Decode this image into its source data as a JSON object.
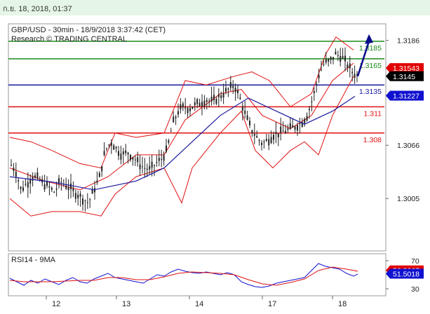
{
  "timestamp": "ก.ย. 18, 2018, 01:37",
  "chart_data": [
    {
      "type": "candlestick",
      "title": "GBP/USD - 30min - 18/9/2018 3:37:42 (CET)",
      "subtitle": "Research © TRADING CENTRAL",
      "x_ticks": [
        "12",
        "13",
        "14",
        "17",
        "18"
      ],
      "y_ticks": [
        "1.3186",
        "1.3066",
        "1.3005"
      ],
      "ylim": [
        1.2945,
        1.3205
      ],
      "levels": [
        {
          "value": 1.3185,
          "label": "1.3185",
          "color": "#1a8a1a"
        },
        {
          "value": 1.3165,
          "label": "1.3165",
          "color": "#1a8a1a"
        },
        {
          "value": 1.3135,
          "label": "1.3135",
          "color": "#1a1aa0"
        },
        {
          "value": 1.311,
          "label": "1.311",
          "color": "#e01010"
        },
        {
          "value": 1.308,
          "label": "1.308",
          "color": "#e01010"
        }
      ],
      "tags": [
        {
          "value": 1.31543,
          "label": "1.31543",
          "color": "#e00000"
        },
        {
          "value": 1.3145,
          "label": "1.3145",
          "color": "#000000"
        },
        {
          "value": 1.31227,
          "label": "1.31227",
          "color": "#1010d0"
        }
      ],
      "price_path": [
        [
          0,
          1.3045
        ],
        [
          8,
          1.3038
        ],
        [
          16,
          1.3015
        ],
        [
          24,
          1.3022
        ],
        [
          32,
          1.303
        ],
        [
          40,
          1.3028
        ],
        [
          48,
          1.3022
        ],
        [
          56,
          1.3018
        ],
        [
          64,
          1.3012
        ],
        [
          72,
          1.3025
        ],
        [
          80,
          1.302
        ],
        [
          88,
          1.3015
        ],
        [
          96,
          1.301
        ],
        [
          104,
          1.3005
        ],
        [
          112,
          1.3
        ],
        [
          120,
          1.3015
        ],
        [
          128,
          1.303
        ],
        [
          136,
          1.306
        ],
        [
          144,
          1.307
        ],
        [
          152,
          1.3062
        ],
        [
          160,
          1.3055
        ],
        [
          168,
          1.3058
        ],
        [
          176,
          1.3052
        ],
        [
          184,
          1.3045
        ],
        [
          192,
          1.304
        ],
        [
          200,
          1.3038
        ],
        [
          208,
          1.3045
        ],
        [
          216,
          1.305
        ],
        [
          224,
          1.306
        ],
        [
          232,
          1.309
        ],
        [
          240,
          1.3105
        ],
        [
          248,
          1.311
        ],
        [
          256,
          1.3108
        ],
        [
          264,
          1.3112
        ],
        [
          272,
          1.3115
        ],
        [
          280,
          1.3118
        ],
        [
          288,
          1.3116
        ],
        [
          296,
          1.312
        ],
        [
          304,
          1.3125
        ],
        [
          312,
          1.313
        ],
        [
          320,
          1.3135
        ],
        [
          328,
          1.312
        ],
        [
          336,
          1.31
        ],
        [
          344,
          1.3085
        ],
        [
          352,
          1.3075
        ],
        [
          360,
          1.3068
        ],
        [
          368,
          1.3072
        ],
        [
          376,
          1.3078
        ],
        [
          384,
          1.308
        ],
        [
          392,
          1.3082
        ],
        [
          400,
          1.3085
        ],
        [
          408,
          1.3088
        ],
        [
          416,
          1.3092
        ],
        [
          424,
          1.31
        ],
        [
          432,
          1.312
        ],
        [
          440,
          1.3145
        ],
        [
          448,
          1.316
        ],
        [
          456,
          1.3162
        ],
        [
          464,
          1.317
        ],
        [
          472,
          1.3168
        ],
        [
          480,
          1.316
        ],
        [
          488,
          1.315
        ],
        [
          496,
          1.3145
        ]
      ],
      "ma_path": [
        [
          0,
          1.303
        ],
        [
          60,
          1.3024
        ],
        [
          120,
          1.3015
        ],
        [
          180,
          1.3025
        ],
        [
          220,
          1.304
        ],
        [
          260,
          1.307
        ],
        [
          300,
          1.31
        ],
        [
          340,
          1.312
        ],
        [
          380,
          1.3105
        ],
        [
          420,
          1.309
        ],
        [
          460,
          1.3105
        ],
        [
          492,
          1.3122
        ]
      ],
      "bollinger_upper": [
        [
          0,
          1.3075
        ],
        [
          30,
          1.307
        ],
        [
          60,
          1.306
        ],
        [
          100,
          1.3045
        ],
        [
          130,
          1.304
        ],
        [
          150,
          1.308
        ],
        [
          180,
          1.3075
        ],
        [
          220,
          1.308
        ],
        [
          250,
          1.314
        ],
        [
          280,
          1.3135
        ],
        [
          320,
          1.3145
        ],
        [
          345,
          1.315
        ],
        [
          370,
          1.314
        ],
        [
          400,
          1.311
        ],
        [
          430,
          1.3125
        ],
        [
          450,
          1.317
        ],
        [
          465,
          1.319
        ],
        [
          490,
          1.3175
        ]
      ],
      "bollinger_middle": [
        [
          0,
          1.304
        ],
        [
          50,
          1.3025
        ],
        [
          100,
          1.3015
        ],
        [
          140,
          1.303
        ],
        [
          180,
          1.3055
        ],
        [
          220,
          1.3055
        ],
        [
          250,
          1.3095
        ],
        [
          300,
          1.3125
        ],
        [
          330,
          1.313
        ],
        [
          360,
          1.31
        ],
        [
          400,
          1.3085
        ],
        [
          430,
          1.31
        ],
        [
          460,
          1.314
        ],
        [
          490,
          1.316
        ]
      ],
      "bollinger_lower": [
        [
          0,
          1.3005
        ],
        [
          30,
          1.2985
        ],
        [
          60,
          1.299
        ],
        [
          100,
          1.299
        ],
        [
          130,
          1.2985
        ],
        [
          150,
          1.301
        ],
        [
          180,
          1.303
        ],
        [
          220,
          1.304
        ],
        [
          245,
          1.3
        ],
        [
          260,
          1.304
        ],
        [
          300,
          1.308
        ],
        [
          330,
          1.3105
        ],
        [
          350,
          1.306
        ],
        [
          375,
          1.304
        ],
        [
          400,
          1.306
        ],
        [
          420,
          1.307
        ],
        [
          440,
          1.3055
        ],
        [
          460,
          1.31
        ],
        [
          490,
          1.3145
        ]
      ],
      "projection_arrow": [
        [
          496,
          1.3145
        ],
        [
          512,
          1.319
        ]
      ]
    },
    {
      "type": "line",
      "title": "RSI14 - 9MA",
      "y_ticks": [
        "70",
        "30"
      ],
      "ylim": [
        20,
        80
      ],
      "tags": [
        {
          "value": 56.2667,
          "label": "56.2667",
          "color": "#e00000"
        },
        {
          "value": 51.5018,
          "label": "51.5018",
          "color": "#1010d0"
        }
      ],
      "series": [
        {
          "color": "#1010d0",
          "values": [
            [
              0,
              45
            ],
            [
              10,
              40
            ],
            [
              20,
              35
            ],
            [
              30,
              42
            ],
            [
              40,
              38
            ],
            [
              50,
              44
            ],
            [
              60,
              40
            ],
            [
              70,
              36
            ],
            [
              80,
              42
            ],
            [
              90,
              46
            ],
            [
              100,
              40
            ],
            [
              110,
              38
            ],
            [
              120,
              44
            ],
            [
              130,
              48
            ],
            [
              140,
              52
            ],
            [
              150,
              46
            ],
            [
              160,
              44
            ],
            [
              170,
              42
            ],
            [
              180,
              40
            ],
            [
              190,
              38
            ],
            [
              200,
              44
            ],
            [
              210,
              50
            ],
            [
              220,
              48
            ],
            [
              230,
              54
            ],
            [
              240,
              58
            ],
            [
              250,
              55
            ],
            [
              260,
              53
            ],
            [
              270,
              52
            ],
            [
              280,
              54
            ],
            [
              290,
              52
            ],
            [
              300,
              50
            ],
            [
              310,
              53
            ],
            [
              320,
              50
            ],
            [
              330,
              40
            ],
            [
              340,
              36
            ],
            [
              350,
              33
            ],
            [
              360,
              32
            ],
            [
              370,
              34
            ],
            [
              380,
              38
            ],
            [
              390,
              40
            ],
            [
              400,
              42
            ],
            [
              410,
              44
            ],
            [
              420,
              46
            ],
            [
              430,
              56
            ],
            [
              440,
              66
            ],
            [
              450,
              62
            ],
            [
              460,
              60
            ],
            [
              470,
              58
            ],
            [
              480,
              52
            ],
            [
              490,
              48
            ],
            [
              496,
              51
            ]
          ]
        },
        {
          "color": "#e01010",
          "values": [
            [
              0,
              42
            ],
            [
              20,
              40
            ],
            [
              40,
              40
            ],
            [
              60,
              40
            ],
            [
              80,
              41
            ],
            [
              100,
              42
            ],
            [
              120,
              42
            ],
            [
              140,
              46
            ],
            [
              160,
              46
            ],
            [
              180,
              43
            ],
            [
              200,
              43
            ],
            [
              220,
              47
            ],
            [
              240,
              52
            ],
            [
              260,
              54
            ],
            [
              280,
              53
            ],
            [
              300,
              52
            ],
            [
              320,
              50
            ],
            [
              340,
              43
            ],
            [
              360,
              37
            ],
            [
              380,
              35
            ],
            [
              400,
              39
            ],
            [
              420,
              44
            ],
            [
              440,
              56
            ],
            [
              460,
              61
            ],
            [
              480,
              58
            ],
            [
              496,
              55
            ]
          ]
        }
      ]
    }
  ]
}
